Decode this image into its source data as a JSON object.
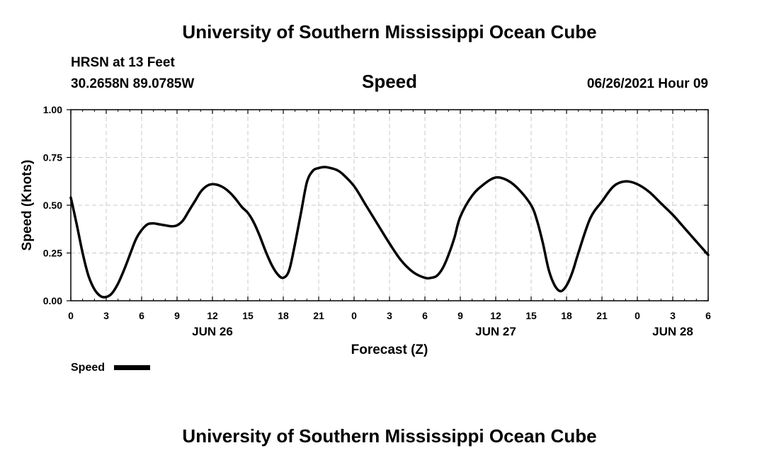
{
  "header": {
    "title": "University of Southern Mississippi Ocean Cube",
    "station": "HRSN at 13 Feet",
    "coords": "30.2658N  89.0785W",
    "variable": "Speed",
    "datetime": "06/26/2021 Hour 09"
  },
  "footer": {
    "title": "University of Southern Mississippi Ocean Cube"
  },
  "legend": {
    "label": "Speed",
    "color": "#000000"
  },
  "chart_data": {
    "type": "line",
    "title": "Speed",
    "xlabel": "Forecast (Z)",
    "ylabel": "Speed (Knots)",
    "xlim": [
      0,
      54
    ],
    "ylim": [
      0,
      1
    ],
    "grid": true,
    "x_tick_labels": [
      "0",
      "3",
      "6",
      "9",
      "12",
      "15",
      "18",
      "21",
      "0",
      "3",
      "6",
      "9",
      "12",
      "15",
      "18",
      "21",
      "0",
      "3",
      "6"
    ],
    "y_tick_labels": [
      "0.00",
      "0.25",
      "0.50",
      "0.75",
      "1.00"
    ],
    "date_labels": [
      {
        "label": "JUN 26",
        "hour": 12
      },
      {
        "label": "JUN 27",
        "hour": 36
      },
      {
        "label": "JUN 28",
        "hour": 51
      }
    ],
    "series": [
      {
        "name": "Speed",
        "color": "#000000",
        "x": [
          0,
          0.5,
          1,
          1.5,
          2,
          2.5,
          3,
          3.5,
          4,
          4.5,
          5,
          5.5,
          6,
          6.5,
          7,
          7.5,
          8,
          8.5,
          9,
          9.5,
          10,
          10.5,
          11,
          11.5,
          12,
          12.5,
          13,
          13.5,
          14,
          14.5,
          15,
          15.5,
          16,
          16.5,
          17,
          17.5,
          18,
          18.5,
          19,
          19.5,
          20,
          20.5,
          21,
          21.5,
          22,
          22.5,
          23,
          24,
          25,
          26,
          27,
          28,
          29,
          30,
          30.5,
          31,
          31.5,
          32,
          32.5,
          33,
          34,
          35,
          36,
          37,
          38,
          39,
          39.5,
          40,
          40.5,
          41,
          41.5,
          42,
          42.5,
          43,
          44,
          45,
          46,
          47,
          48,
          49,
          50,
          51,
          52,
          53,
          54
        ],
        "values": [
          0.54,
          0.4,
          0.25,
          0.13,
          0.06,
          0.025,
          0.02,
          0.04,
          0.09,
          0.16,
          0.24,
          0.32,
          0.37,
          0.4,
          0.405,
          0.4,
          0.395,
          0.39,
          0.395,
          0.42,
          0.47,
          0.52,
          0.57,
          0.6,
          0.61,
          0.605,
          0.59,
          0.565,
          0.53,
          0.49,
          0.46,
          0.41,
          0.34,
          0.26,
          0.19,
          0.14,
          0.12,
          0.16,
          0.3,
          0.46,
          0.62,
          0.68,
          0.695,
          0.7,
          0.695,
          0.685,
          0.665,
          0.6,
          0.5,
          0.4,
          0.3,
          0.21,
          0.15,
          0.12,
          0.12,
          0.13,
          0.17,
          0.24,
          0.33,
          0.44,
          0.55,
          0.61,
          0.645,
          0.63,
          0.58,
          0.5,
          0.42,
          0.3,
          0.16,
          0.08,
          0.05,
          0.08,
          0.15,
          0.25,
          0.43,
          0.52,
          0.6,
          0.625,
          0.61,
          0.57,
          0.51,
          0.45,
          0.38,
          0.31,
          0.24
        ]
      }
    ]
  }
}
